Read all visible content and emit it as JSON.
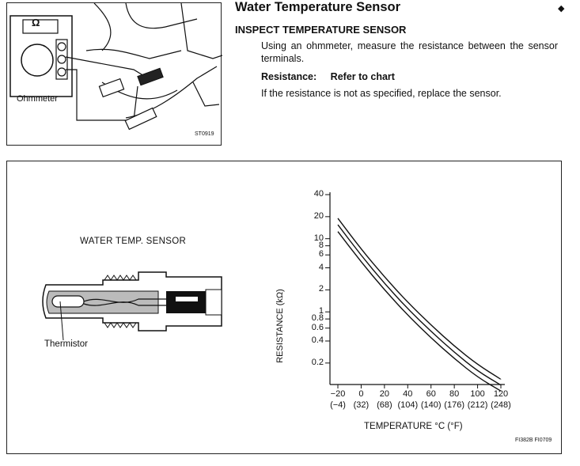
{
  "header": {
    "title": "Water Temperature Sensor",
    "arrow": "◆",
    "subtitle": "INSPECT TEMPERATURE SENSOR",
    "instruction": "Using an ohmmeter, measure the resistance between the sensor terminals.",
    "resistance_label": "Resistance:",
    "resistance_value": "Refer to chart",
    "replace_note": "If the resistance is not as specified, replace the sensor."
  },
  "illustration": {
    "ohm_symbol": "Ω",
    "ohmmeter_label": "Ohmmeter",
    "code": "ST0919"
  },
  "sensor_diagram": {
    "caption": "WATER TEMP. SENSOR",
    "thermistor_label": "Thermistor"
  },
  "chart_data": {
    "type": "line",
    "title": "",
    "xlabel": "TEMPERATURE °C (°F)",
    "ylabel": "RESISTANCE (kΩ)",
    "y_scale": "log",
    "ylim": [
      0.1,
      40
    ],
    "xlim": [
      -20,
      120
    ],
    "y_ticks": [
      "40",
      "20",
      "10",
      "8",
      "6",
      "4",
      "2",
      "1",
      "0.8",
      "0.6",
      "0.4",
      "0.2"
    ],
    "x_ticks_c": [
      "−20",
      "0",
      "20",
      "40",
      "60",
      "80",
      "100",
      "120"
    ],
    "x_ticks_f": [
      "(−4)",
      "(32)",
      "(68)",
      "(104)",
      "(140)",
      "(176)",
      "(212)",
      "(248)"
    ],
    "grid": false,
    "series": [
      {
        "x": [
          -20,
          0,
          20,
          40,
          60,
          80,
          100,
          120
        ],
        "values": [
          19.0,
          7.2,
          3.0,
          1.35,
          0.66,
          0.34,
          0.19,
          0.12
        ]
      },
      {
        "x": [
          -20,
          0,
          20,
          40,
          60,
          80,
          100,
          120
        ],
        "values": [
          15.5,
          5.9,
          2.45,
          1.1,
          0.54,
          0.28,
          0.155,
          0.1
        ]
      },
      {
        "x": [
          -20,
          0,
          20,
          40,
          60,
          80,
          100,
          120
        ],
        "values": [
          12.5,
          4.8,
          2.0,
          0.9,
          0.44,
          0.23,
          0.128,
          0.083
        ]
      }
    ]
  },
  "figure_code": "FI382B FI0709"
}
